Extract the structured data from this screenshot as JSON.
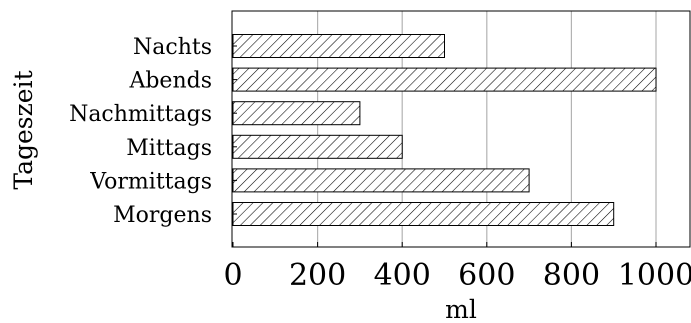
{
  "chart_data": {
    "type": "bar",
    "orientation": "horizontal",
    "title": "",
    "xlabel": "ml",
    "ylabel": "Tageszeit",
    "categories": [
      "Morgens",
      "Vormittags",
      "Mittags",
      "Nachmittags",
      "Abends",
      "Nachts"
    ],
    "values": [
      900,
      700,
      400,
      300,
      1000,
      500
    ],
    "xlim": [
      0,
      1080
    ],
    "xticks": [
      0,
      200,
      400,
      600,
      800,
      1000
    ],
    "xtick_labels": [
      "0",
      "200",
      "400",
      "600",
      "800",
      "1000"
    ],
    "grid": "vertical",
    "legend": "none",
    "bar_fill": "diagonal-hatch",
    "colors": {
      "bar_stroke": "#000000",
      "hatch": "#000000",
      "grid": "#b3b3b3",
      "axis": "#000000",
      "background": "#ffffff"
    }
  }
}
